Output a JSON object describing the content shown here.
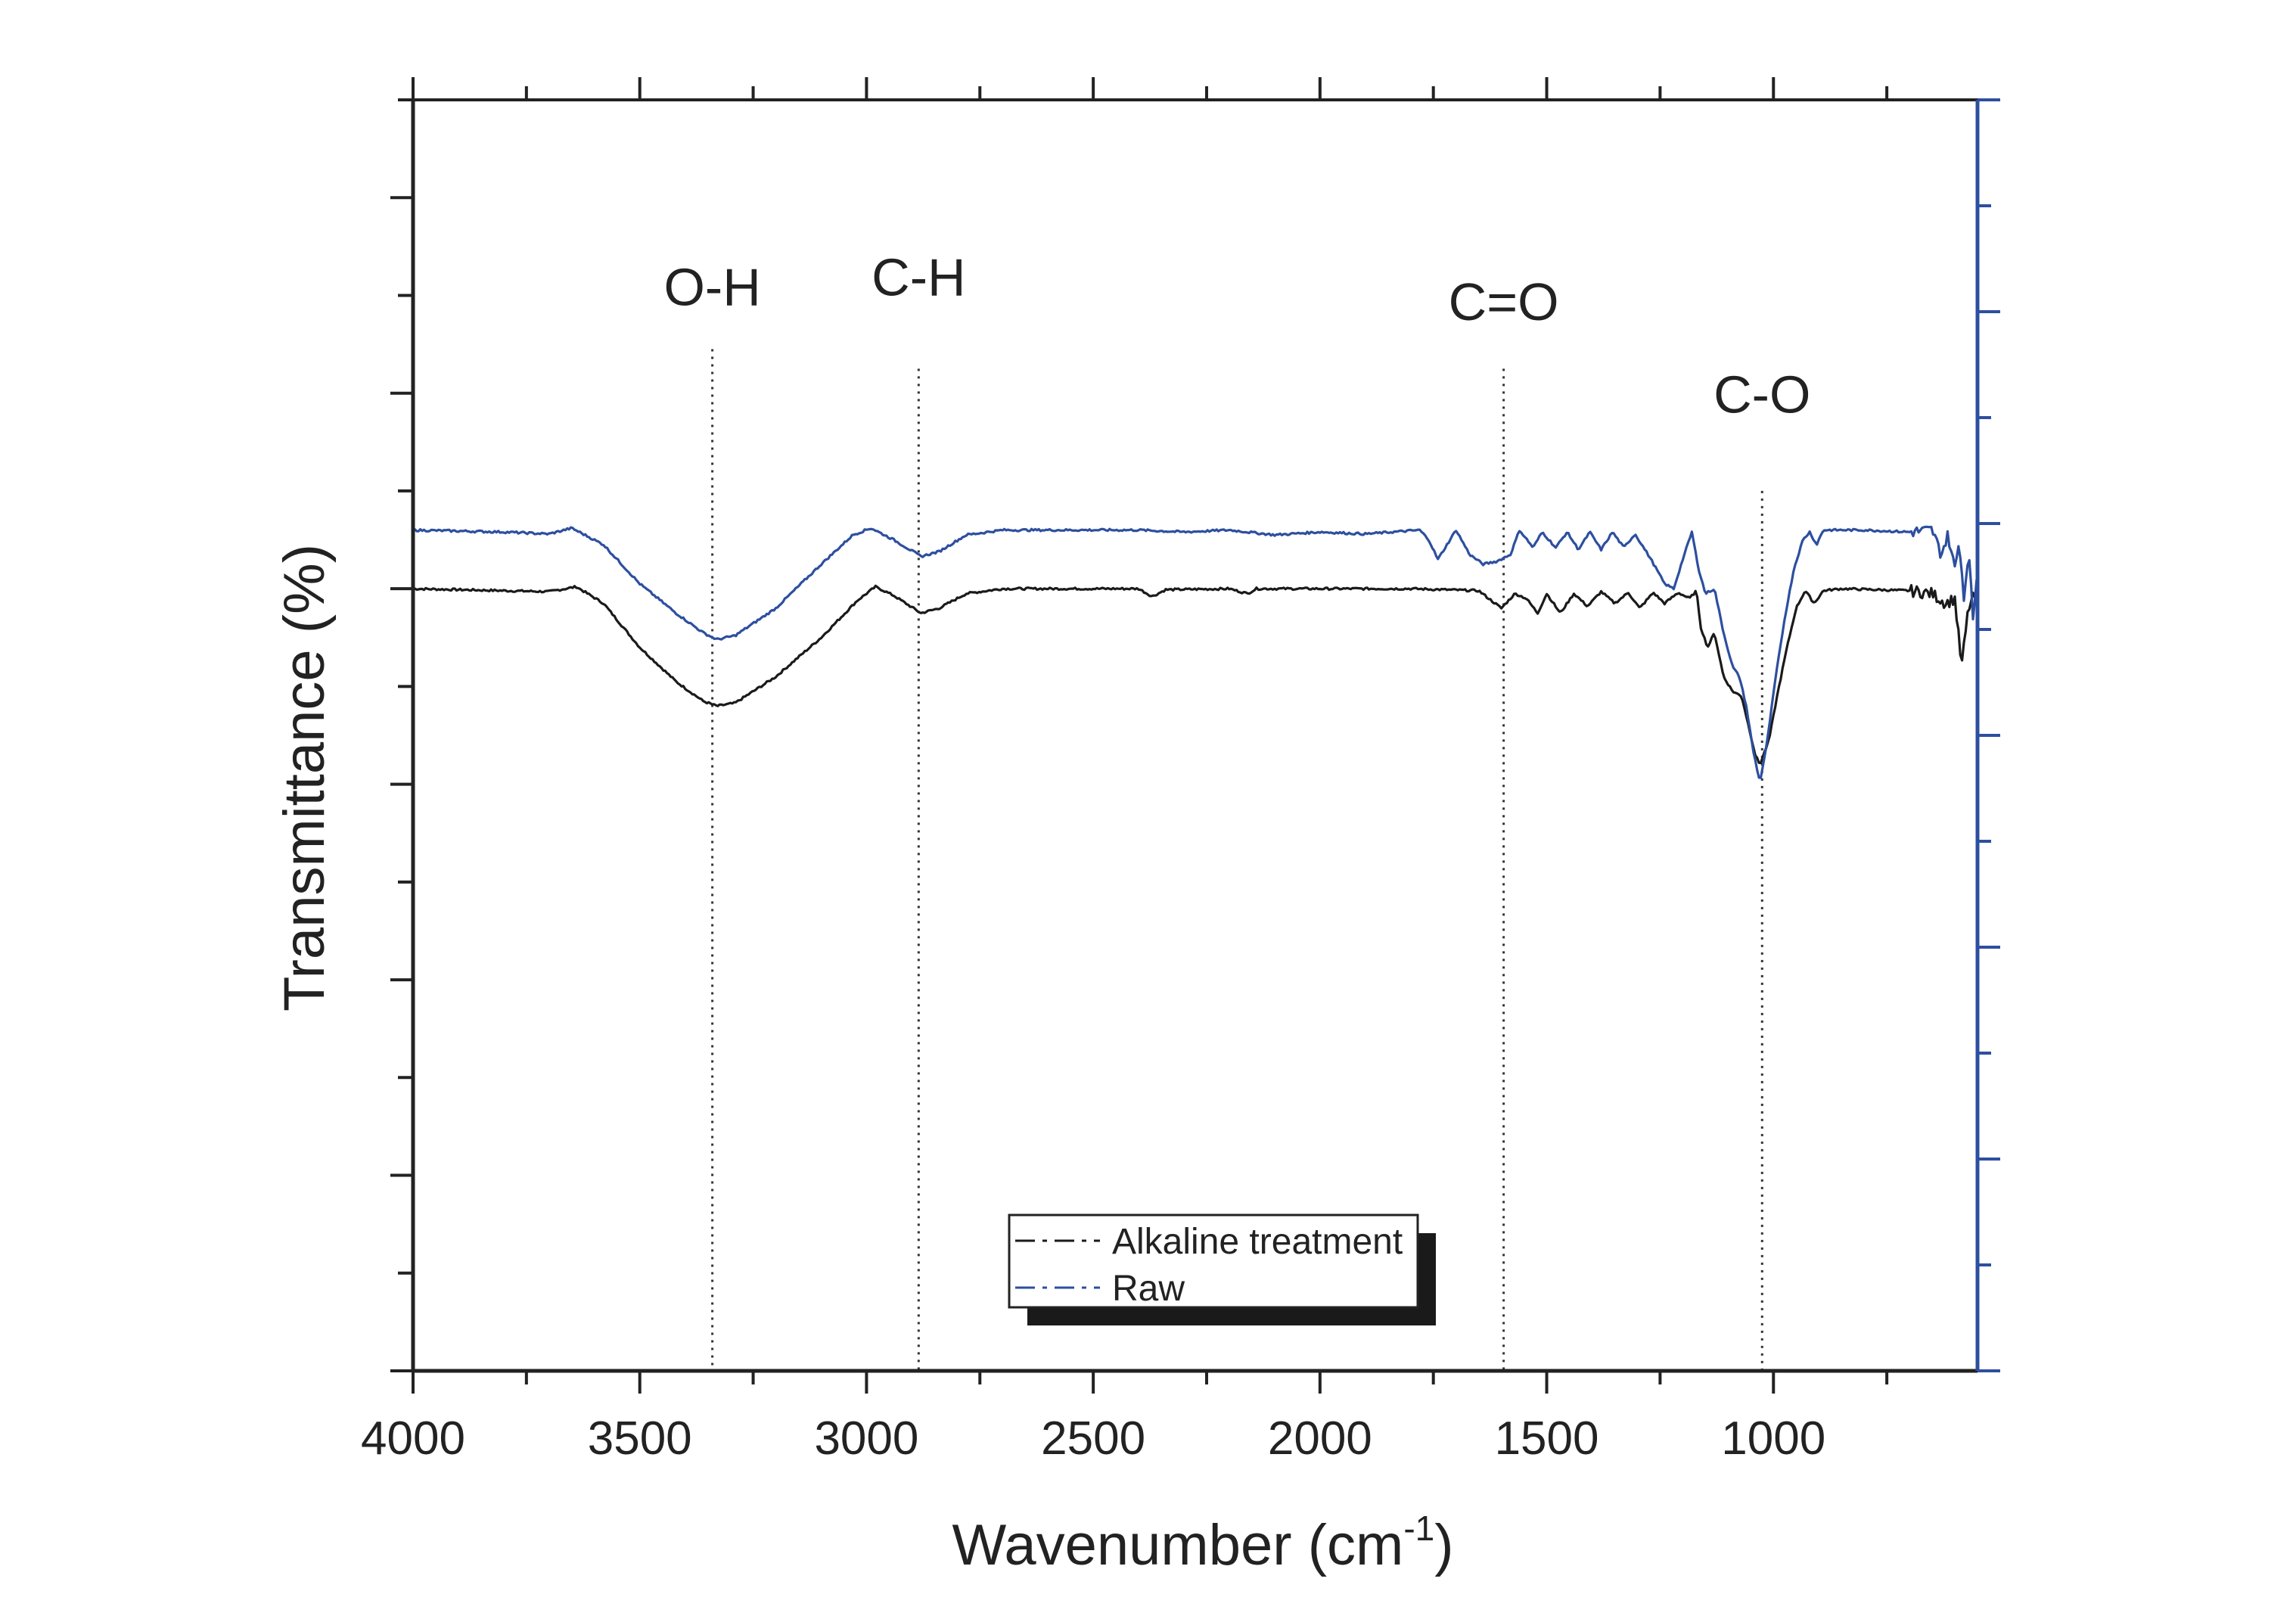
{
  "chart_data": {
    "type": "line",
    "xlabel": "Wavenumber (cm",
    "xlabel_superscript": "-1",
    "xlabel_suffix": ")",
    "ylabel": "Transmittance (%)",
    "xlim": [
      4000,
      550
    ],
    "x_reversed": true,
    "ylim": [
      0,
      13
    ],
    "x_ticks": [
      4000,
      3500,
      3000,
      2500,
      2000,
      1500,
      1000
    ],
    "x_tick_labels": [
      "4000",
      "3500",
      "3000",
      "2500",
      "2000",
      "1500",
      "1000"
    ],
    "y_tick_labels_shown": false,
    "secondary_y_axis": true,
    "grid": false,
    "legend_position": "bottom-center",
    "series": [
      {
        "name": "Alkaline treatment",
        "color": "#1a1a1a",
        "points": [
          [
            4000,
            8.0
          ],
          [
            3800,
            7.98
          ],
          [
            3700,
            7.97
          ],
          [
            3640,
            8.02
          ],
          [
            3580,
            7.85
          ],
          [
            3500,
            7.4
          ],
          [
            3420,
            7.05
          ],
          [
            3360,
            6.85
          ],
          [
            3330,
            6.8
          ],
          [
            3290,
            6.83
          ],
          [
            3200,
            7.1
          ],
          [
            3100,
            7.5
          ],
          [
            3020,
            7.88
          ],
          [
            2980,
            8.02
          ],
          [
            2940,
            7.93
          ],
          [
            2880,
            7.75
          ],
          [
            2840,
            7.8
          ],
          [
            2780,
            7.95
          ],
          [
            2700,
            8.0
          ],
          [
            2400,
            8.0
          ],
          [
            2370,
            7.92
          ],
          [
            2340,
            7.99
          ],
          [
            2200,
            8.0
          ],
          [
            2160,
            7.95
          ],
          [
            2140,
            8.0
          ],
          [
            1800,
            8.0
          ],
          [
            1650,
            7.98
          ],
          [
            1600,
            7.8
          ],
          [
            1570,
            7.95
          ],
          [
            1545,
            7.9
          ],
          [
            1520,
            7.75
          ],
          [
            1500,
            7.95
          ],
          [
            1470,
            7.75
          ],
          [
            1440,
            7.95
          ],
          [
            1410,
            7.82
          ],
          [
            1380,
            7.97
          ],
          [
            1350,
            7.85
          ],
          [
            1320,
            7.96
          ],
          [
            1295,
            7.8
          ],
          [
            1265,
            7.96
          ],
          [
            1240,
            7.85
          ],
          [
            1210,
            7.96
          ],
          [
            1185,
            7.9
          ],
          [
            1170,
            7.98
          ],
          [
            1160,
            7.6
          ],
          [
            1145,
            7.4
          ],
          [
            1130,
            7.55
          ],
          [
            1110,
            7.1
          ],
          [
            1090,
            6.95
          ],
          [
            1070,
            6.9
          ],
          [
            1055,
            6.6
          ],
          [
            1040,
            6.3
          ],
          [
            1030,
            6.2
          ],
          [
            1010,
            6.45
          ],
          [
            990,
            6.95
          ],
          [
            970,
            7.4
          ],
          [
            950,
            7.8
          ],
          [
            930,
            7.98
          ],
          [
            910,
            7.85
          ],
          [
            890,
            7.98
          ],
          [
            850,
            8.0
          ],
          [
            700,
            7.98
          ],
          [
            650,
            7.95
          ],
          [
            620,
            7.85
          ],
          [
            600,
            7.9
          ],
          [
            585,
            7.2
          ],
          [
            570,
            7.8
          ],
          [
            560,
            7.9
          ],
          [
            550,
            7.95
          ]
        ]
      },
      {
        "name": "Raw",
        "color": "#2d4f9f",
        "points": [
          [
            4000,
            8.6
          ],
          [
            3800,
            8.58
          ],
          [
            3700,
            8.56
          ],
          [
            3650,
            8.62
          ],
          [
            3580,
            8.45
          ],
          [
            3500,
            8.05
          ],
          [
            3420,
            7.75
          ],
          [
            3360,
            7.55
          ],
          [
            3330,
            7.48
          ],
          [
            3290,
            7.52
          ],
          [
            3200,
            7.8
          ],
          [
            3100,
            8.25
          ],
          [
            3030,
            8.55
          ],
          [
            2990,
            8.62
          ],
          [
            2940,
            8.5
          ],
          [
            2880,
            8.33
          ],
          [
            2840,
            8.38
          ],
          [
            2780,
            8.55
          ],
          [
            2700,
            8.6
          ],
          [
            2400,
            8.6
          ],
          [
            2300,
            8.58
          ],
          [
            2200,
            8.6
          ],
          [
            2100,
            8.55
          ],
          [
            2000,
            8.58
          ],
          [
            1900,
            8.56
          ],
          [
            1780,
            8.6
          ],
          [
            1760,
            8.5
          ],
          [
            1740,
            8.3
          ],
          [
            1700,
            8.6
          ],
          [
            1670,
            8.35
          ],
          [
            1640,
            8.25
          ],
          [
            1610,
            8.28
          ],
          [
            1580,
            8.35
          ],
          [
            1560,
            8.6
          ],
          [
            1530,
            8.42
          ],
          [
            1510,
            8.58
          ],
          [
            1480,
            8.42
          ],
          [
            1455,
            8.58
          ],
          [
            1430,
            8.4
          ],
          [
            1405,
            8.58
          ],
          [
            1380,
            8.4
          ],
          [
            1355,
            8.58
          ],
          [
            1330,
            8.42
          ],
          [
            1305,
            8.56
          ],
          [
            1270,
            8.3
          ],
          [
            1240,
            8.05
          ],
          [
            1220,
            8.0
          ],
          [
            1200,
            8.3
          ],
          [
            1180,
            8.58
          ],
          [
            1165,
            8.2
          ],
          [
            1150,
            7.95
          ],
          [
            1130,
            8.0
          ],
          [
            1110,
            7.55
          ],
          [
            1090,
            7.2
          ],
          [
            1075,
            7.1
          ],
          [
            1060,
            6.8
          ],
          [
            1045,
            6.35
          ],
          [
            1030,
            6.02
          ],
          [
            1015,
            6.4
          ],
          [
            995,
            7.1
          ],
          [
            975,
            7.7
          ],
          [
            955,
            8.2
          ],
          [
            935,
            8.5
          ],
          [
            920,
            8.58
          ],
          [
            905,
            8.45
          ],
          [
            890,
            8.6
          ],
          [
            800,
            8.6
          ],
          [
            700,
            8.58
          ],
          [
            650,
            8.6
          ],
          [
            630,
            8.35
          ],
          [
            615,
            8.55
          ],
          [
            600,
            8.2
          ],
          [
            590,
            8.5
          ],
          [
            580,
            7.9
          ],
          [
            570,
            8.4
          ],
          [
            560,
            7.7
          ],
          [
            550,
            8.2
          ]
        ]
      }
    ],
    "annotations": [
      {
        "label": "O-H",
        "x": 3340,
        "label_y": 10.9,
        "line_top": 10.45
      },
      {
        "label": "C-H",
        "x": 2885,
        "label_y": 11.0,
        "line_top": 10.25
      },
      {
        "label": "C=O",
        "x": 1595,
        "label_y": 10.75,
        "line_top": 10.25
      },
      {
        "label": "C-O",
        "x": 1025,
        "label_y": 9.8,
        "line_top": 9.0
      }
    ]
  }
}
